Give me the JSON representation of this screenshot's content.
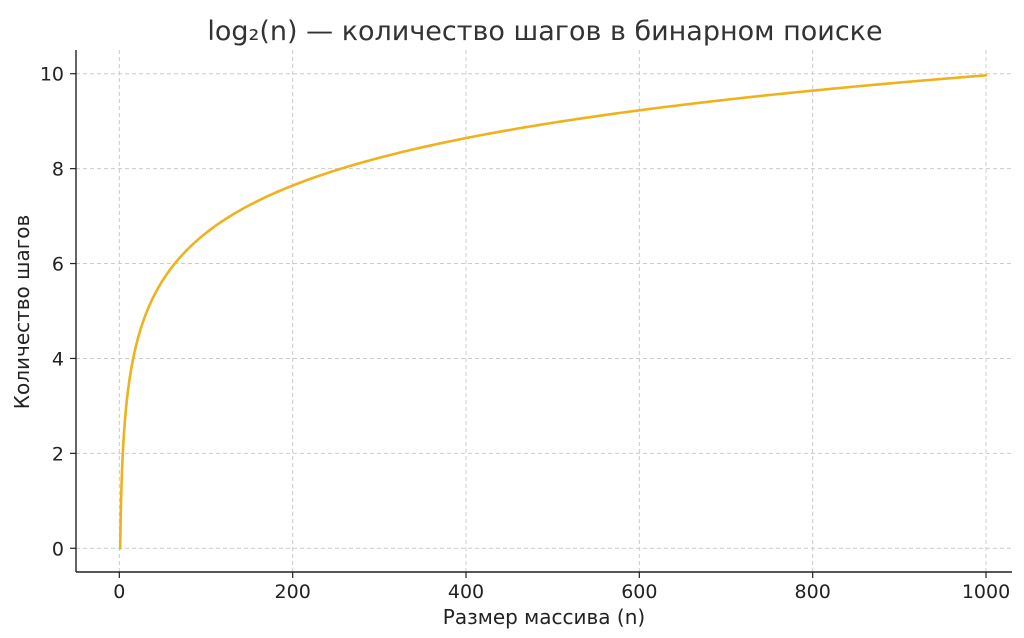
{
  "chart_data": {
    "type": "line",
    "title": "log₂(n) — количество шагов в бинарном поиске",
    "xlabel": "Размер массива (n)",
    "ylabel": "Количество шагов",
    "xlim": [
      -50,
      1030
    ],
    "ylim": [
      -0.5,
      10.5
    ],
    "x_ticks": [
      0,
      200,
      400,
      600,
      800,
      1000
    ],
    "y_ticks": [
      0,
      2,
      4,
      6,
      8,
      10
    ],
    "grid": true,
    "spines": [
      "left",
      "bottom"
    ],
    "series": [
      {
        "function": "log2(n)",
        "color": "#f0b21c",
        "points": [
          [
            1,
            0
          ],
          [
            2,
            1
          ],
          [
            4,
            2
          ],
          [
            8,
            3
          ],
          [
            16,
            4
          ],
          [
            32,
            5
          ],
          [
            64,
            6
          ],
          [
            100,
            6.64
          ],
          [
            128,
            7
          ],
          [
            200,
            7.64
          ],
          [
            256,
            8
          ],
          [
            300,
            8.23
          ],
          [
            400,
            8.64
          ],
          [
            500,
            8.97
          ],
          [
            512,
            9
          ],
          [
            600,
            9.23
          ],
          [
            700,
            9.45
          ],
          [
            800,
            9.64
          ],
          [
            900,
            9.81
          ],
          [
            1000,
            9.97
          ]
        ]
      }
    ]
  }
}
